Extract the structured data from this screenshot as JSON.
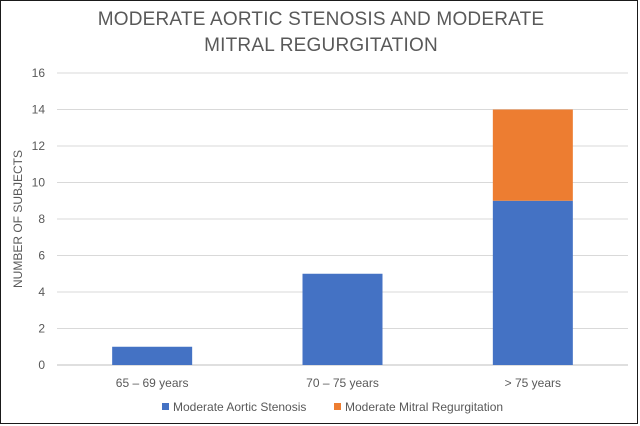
{
  "chart_data": {
    "type": "bar",
    "stacked": true,
    "title": "MODERATE AORTIC STENOSIS AND MODERATE MITRAL REGURGITATION",
    "xlabel": "",
    "ylabel": "NUMBER OF  SUBJECTS",
    "categories": [
      "65 – 69 years",
      "70 – 75 years",
      "> 75 years"
    ],
    "series": [
      {
        "name": "Moderate Aortic Stenosis",
        "values": [
          1,
          5,
          9
        ],
        "color": "#4472C4"
      },
      {
        "name": "Moderate Mitral Regurgitation",
        "values": [
          0,
          0,
          5
        ],
        "color": "#ED7D31"
      }
    ],
    "ylim": [
      0,
      16
    ],
    "yticks": [
      "0",
      "2",
      "4",
      "6",
      "8",
      "10",
      "12",
      "14",
      "16"
    ],
    "grid": true,
    "legend_position": "bottom"
  }
}
